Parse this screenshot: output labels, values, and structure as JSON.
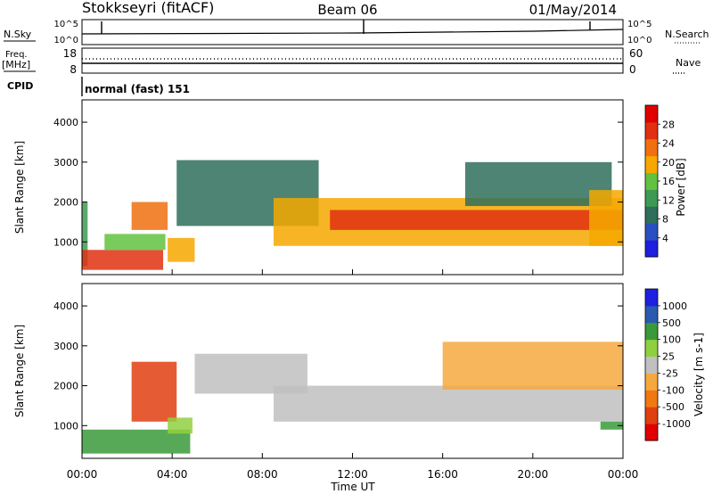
{
  "header": {
    "station": "Stokkseyri (fitACF)",
    "beam": "Beam 06",
    "date": "01/May/2014"
  },
  "sky_panel": {
    "left_label": "N.Sky",
    "left_ticks": [
      "10^5",
      "10^0"
    ],
    "right_label": "N.Search",
    "right_ticks": [
      "10^5",
      "10^0"
    ]
  },
  "freq_panel": {
    "left_label": "Freq.",
    "left_unit": "[MHz]",
    "left_ticks": [
      "18",
      "8"
    ],
    "right_label": "Nave",
    "right_ticks": [
      "60",
      "0"
    ]
  },
  "cpid_panel": {
    "label": "CPID",
    "mode": "normal (fast) 151"
  },
  "x_axis": {
    "ticks": [
      "00:00",
      "04:00",
      "08:00",
      "12:00",
      "16:00",
      "20:00",
      "00:00"
    ],
    "label": "Time UT"
  },
  "colors": {
    "power": [
      "#1f1fe0",
      "#2a4fc0",
      "#2e6e5a",
      "#3e9a52",
      "#62c240",
      "#f6a800",
      "#f07010",
      "#e03010",
      "#e00000"
    ],
    "velocity": [
      "#e00000",
      "#e04010",
      "#f07810",
      "#f6a840",
      "#c0c0c0",
      "#90d040",
      "#3a9a3a",
      "#2a5ab0",
      "#1f1fe0"
    ]
  },
  "chart_data": [
    {
      "type": "heatmap",
      "panel": "power",
      "ylabel": "Slant Range [km]",
      "yticks": [
        "4000",
        "3000",
        "2000",
        "1000"
      ],
      "ylim": [
        180,
        4560
      ],
      "xlim": [
        0,
        24
      ],
      "colorbar_label": "Power [dB]",
      "colorbar_ticks": [
        "28",
        "24",
        "20",
        "16",
        "12",
        "8",
        "4"
      ],
      "colorbar_range": [
        0,
        32
      ],
      "regions": [
        {
          "t0": 0.0,
          "t1": 0.25,
          "r0": 400,
          "r1": 2000,
          "level": 3
        },
        {
          "t0": 0.0,
          "t1": 3.6,
          "r0": 300,
          "r1": 800,
          "level": 7
        },
        {
          "t0": 1.0,
          "t1": 3.7,
          "r0": 800,
          "r1": 1200,
          "level": 4
        },
        {
          "t0": 2.2,
          "t1": 3.8,
          "r0": 1300,
          "r1": 2000,
          "level": 6
        },
        {
          "t0": 3.8,
          "t1": 5.0,
          "r0": 500,
          "r1": 1100,
          "level": 5
        },
        {
          "t0": 4.2,
          "t1": 10.5,
          "r0": 1400,
          "r1": 3050,
          "level": 2
        },
        {
          "t0": 8.5,
          "t1": 24.0,
          "r0": 900,
          "r1": 2100,
          "level": 5
        },
        {
          "t0": 11.0,
          "t1": 24.0,
          "r0": 1300,
          "r1": 1800,
          "level": 7
        },
        {
          "t0": 17.0,
          "t1": 23.5,
          "r0": 1900,
          "r1": 3000,
          "level": 2
        },
        {
          "t0": 22.5,
          "t1": 24.0,
          "r0": 900,
          "r1": 2300,
          "level": 5
        }
      ]
    },
    {
      "type": "heatmap",
      "panel": "velocity",
      "ylabel": "Slant Range [km]",
      "yticks": [
        "4000",
        "3000",
        "2000",
        "1000"
      ],
      "ylim": [
        180,
        4560
      ],
      "xlim": [
        0,
        24
      ],
      "colorbar_label": "Velocity [m s-1]",
      "colorbar_ticks": [
        "1000",
        "500",
        "100",
        "25",
        "-25",
        "-100",
        "-500",
        "-1000"
      ],
      "regions": [
        {
          "t0": 0.0,
          "t1": 4.8,
          "r0": 300,
          "r1": 900,
          "level": 6
        },
        {
          "t0": 2.2,
          "t1": 4.2,
          "r0": 1100,
          "r1": 2600,
          "level": 1
        },
        {
          "t0": 3.8,
          "t1": 4.9,
          "r0": 800,
          "r1": 1200,
          "level": 5
        },
        {
          "t0": 5.0,
          "t1": 10.0,
          "r0": 1800,
          "r1": 2800,
          "level": 4
        },
        {
          "t0": 8.5,
          "t1": 24.0,
          "r0": 1100,
          "r1": 2000,
          "level": 4
        },
        {
          "t0": 16.0,
          "t1": 24.0,
          "r0": 1900,
          "r1": 3100,
          "level": 3
        },
        {
          "t0": 23.0,
          "t1": 24.0,
          "r0": 900,
          "r1": 1100,
          "level": 6
        }
      ]
    }
  ]
}
